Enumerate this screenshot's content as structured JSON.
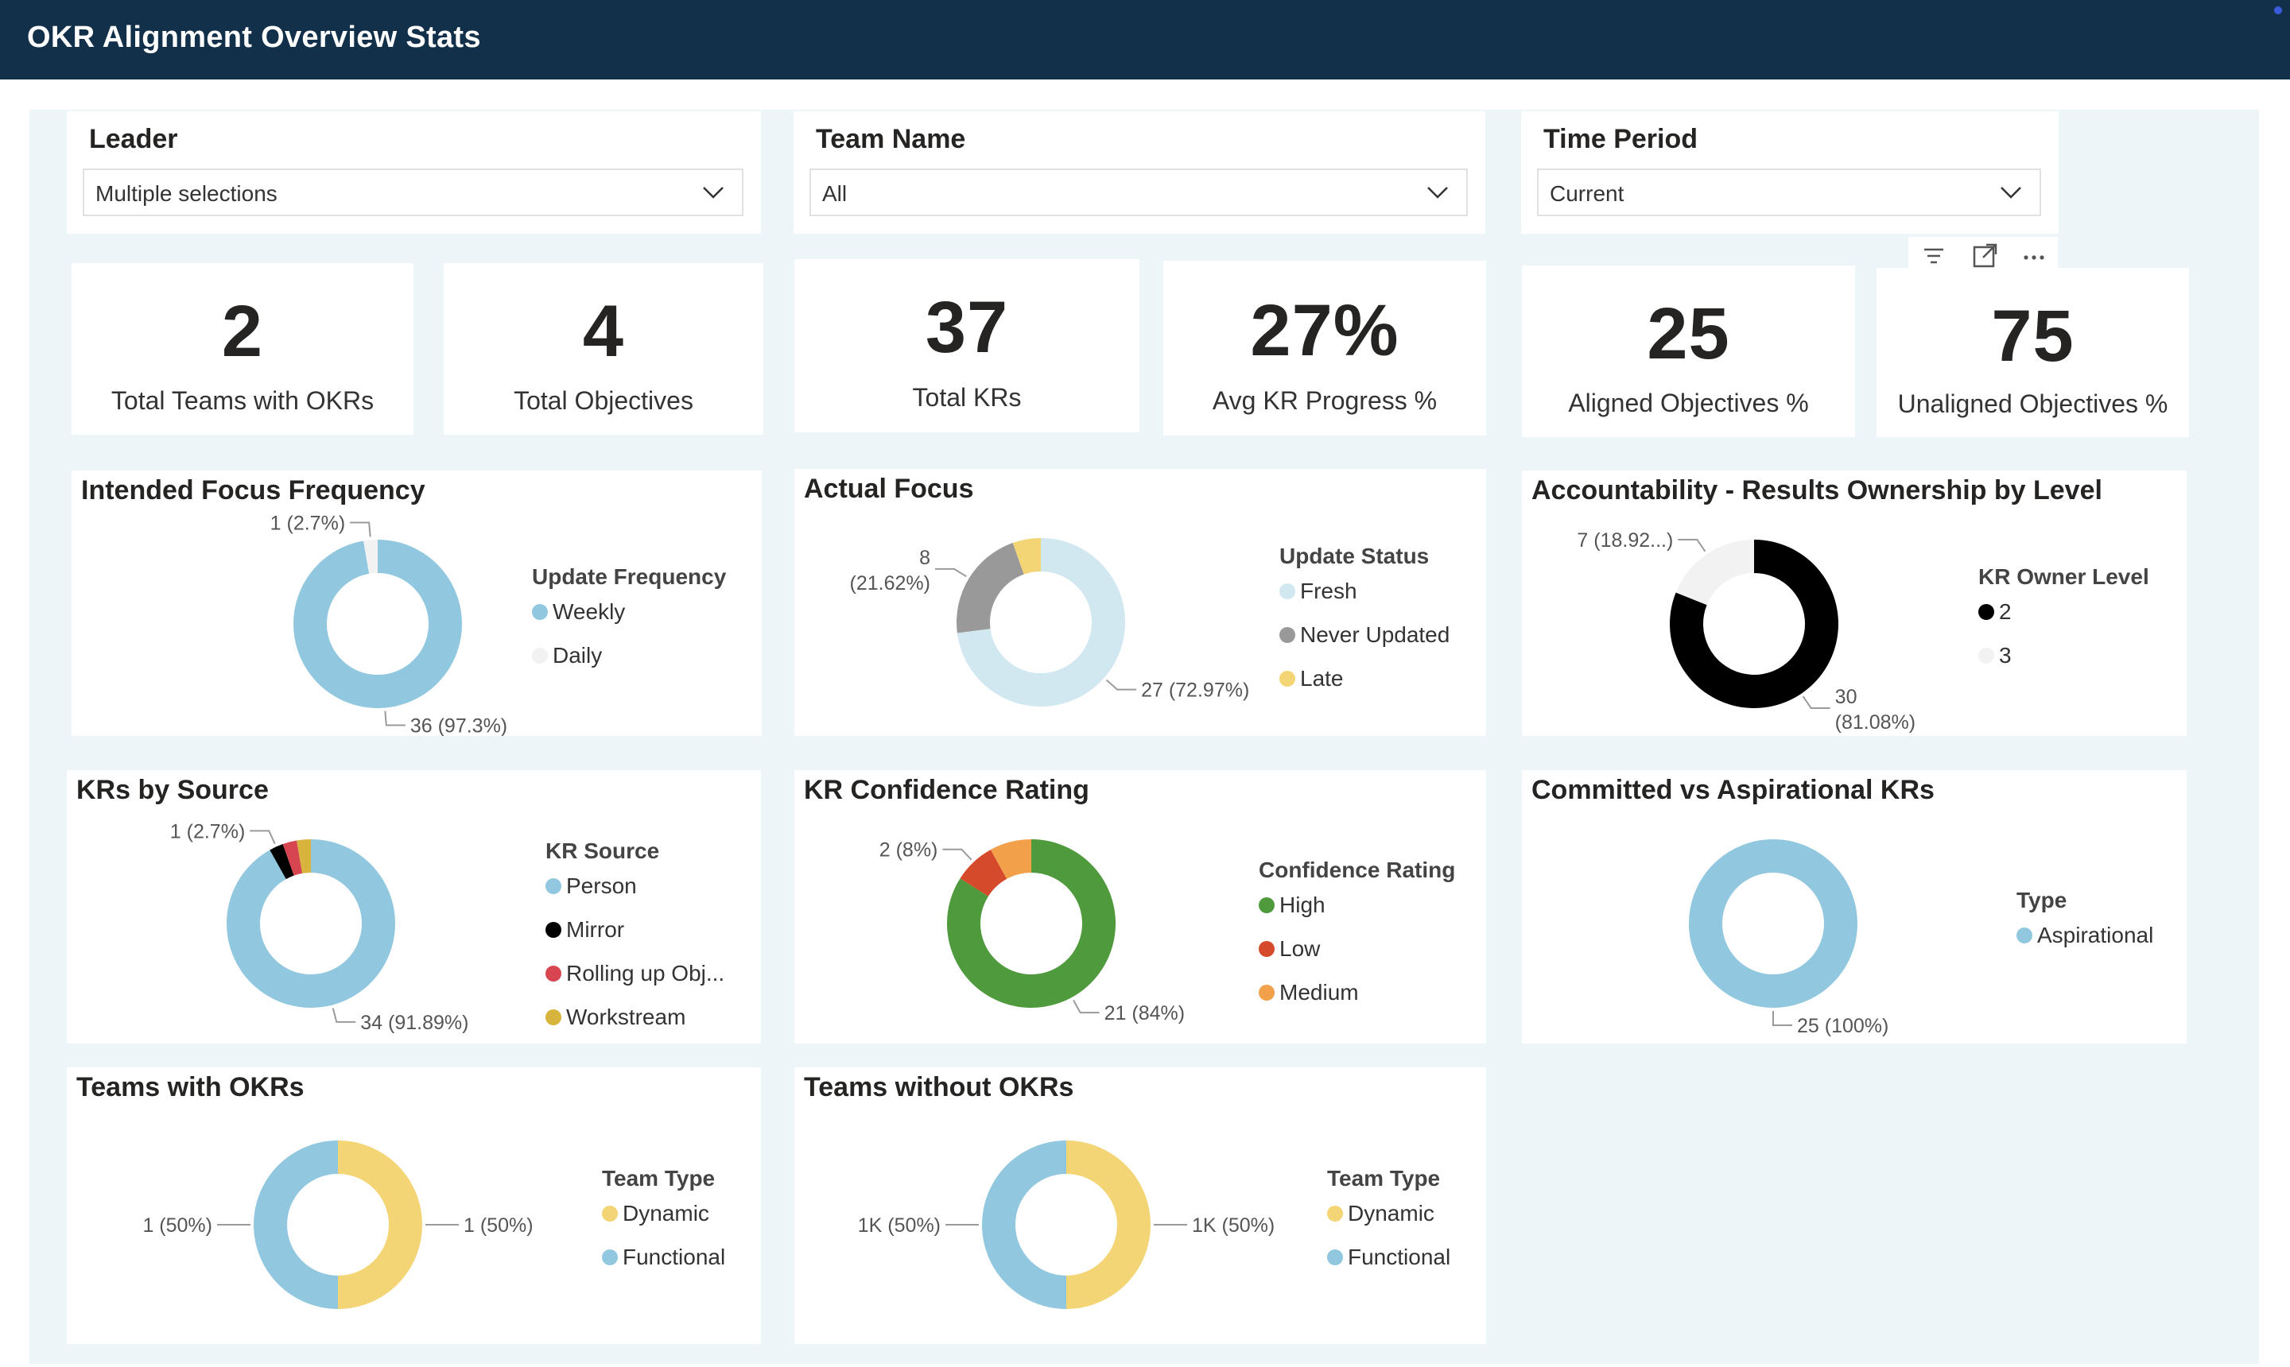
{
  "header": {
    "title": "OKR Alignment Overview Stats"
  },
  "slicers": [
    {
      "label": "Leader",
      "value": "Multiple selections"
    },
    {
      "label": "Team Name",
      "value": "All"
    },
    {
      "label": "Time Period",
      "value": "Current"
    }
  ],
  "kpis": [
    {
      "value": "2",
      "label": "Total Teams with OKRs"
    },
    {
      "value": "4",
      "label": "Total Objectives"
    },
    {
      "value": "37",
      "label": "Total KRs"
    },
    {
      "value": "27%",
      "label": "Avg KR Progress %"
    },
    {
      "value": "25",
      "label": "Aligned Objectives %"
    },
    {
      "value": "75",
      "label": "Unaligned Objectives %"
    }
  ],
  "toolbar": {
    "icons": [
      "filter-icon",
      "focus-mode-icon",
      "more-options-icon"
    ]
  },
  "chart_data": [
    {
      "type": "pie",
      "title": "Intended Focus Frequency",
      "legend_title": "Update Frequency",
      "legend_position": "right",
      "categories": [
        "Weekly",
        "Daily"
      ],
      "values": [
        36,
        1
      ],
      "colors": [
        "#91c8df",
        "#f2f2f2"
      ],
      "data_labels": [
        "36 (97.3%)",
        "1 (2.7%)"
      ]
    },
    {
      "type": "pie",
      "title": "Actual Focus",
      "legend_title": "Update Status",
      "legend_position": "right",
      "categories": [
        "Fresh",
        "Never Updated",
        "Late"
      ],
      "values": [
        27,
        8,
        2
      ],
      "colors": [
        "#d2e8f1",
        "#999999",
        "#f4d575"
      ],
      "data_labels": [
        "27 (72.97%)",
        "8\n(21.62%)",
        ""
      ]
    },
    {
      "type": "pie",
      "title": "Accountability - Results Ownership by Level",
      "legend_title": "KR Owner Level",
      "legend_position": "right",
      "categories": [
        "2",
        "3"
      ],
      "values": [
        30,
        7
      ],
      "colors": [
        "#000000",
        "#f2f2f2"
      ],
      "data_labels": [
        "30\n(81.08%)",
        "7 (18.92...)"
      ]
    },
    {
      "type": "pie",
      "title": "KRs by Source",
      "legend_title": "KR Source",
      "legend_position": "right",
      "categories": [
        "Person",
        "Mirror",
        "Rolling up Obj...",
        "Workstream"
      ],
      "values": [
        34,
        1,
        1,
        1
      ],
      "colors": [
        "#91c8df",
        "#000000",
        "#d64550",
        "#d8b43c"
      ],
      "data_labels": [
        "34 (91.89%)",
        "1 (2.7%)",
        "",
        ""
      ]
    },
    {
      "type": "pie",
      "title": "KR Confidence Rating",
      "legend_title": "Confidence Rating",
      "legend_position": "right",
      "categories": [
        "High",
        "Low",
        "Medium"
      ],
      "values": [
        21,
        2,
        2
      ],
      "colors": [
        "#4e9a3c",
        "#d54a2a",
        "#f2a04a"
      ],
      "data_labels": [
        "21 (84%)",
        "2 (8%)",
        ""
      ]
    },
    {
      "type": "pie",
      "title": "Committed vs Aspirational KRs",
      "legend_title": "Type",
      "legend_position": "right",
      "categories": [
        "Aspirational"
      ],
      "values": [
        25
      ],
      "colors": [
        "#91c8df"
      ],
      "data_labels": [
        "25 (100%)"
      ]
    },
    {
      "type": "pie",
      "title": "Teams with OKRs",
      "legend_title": "Team Type",
      "legend_position": "right",
      "categories": [
        "Dynamic",
        "Functional"
      ],
      "values": [
        1,
        1
      ],
      "colors": [
        "#f4d575",
        "#91c8df"
      ],
      "data_labels": [
        "1 (50%)",
        "1 (50%)"
      ]
    },
    {
      "type": "pie",
      "title": "Teams without OKRs",
      "legend_title": "Team Type",
      "legend_position": "right",
      "categories": [
        "Dynamic",
        "Functional"
      ],
      "values": [
        1000,
        1000
      ],
      "colors": [
        "#f4d575",
        "#91c8df"
      ],
      "data_labels": [
        "1K (50%)",
        "1K (50%)"
      ]
    }
  ]
}
